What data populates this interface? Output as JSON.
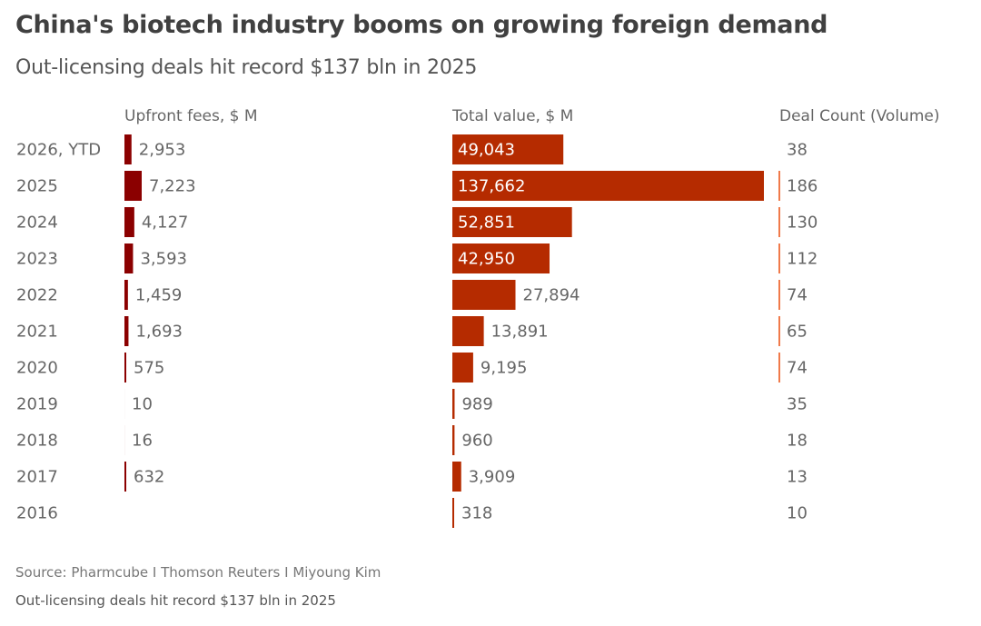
{
  "title": "China's biotech industry booms on growing foreign demand",
  "subtitle": "Out-licensing deals hit record $137 bln in 2025",
  "footer": {
    "source": "Source: Pharmcube I Thomson Reuters I Miyoung Kim",
    "note": "Out-licensing deals hit record $137 bln in 2025"
  },
  "colors": {
    "upfront": "#8b0000",
    "total": "#b52b00",
    "deal_count": "#f07a4a",
    "label_text": "#666666",
    "label_text_on_bar": "#ffffff"
  },
  "chart_data": {
    "type": "bar",
    "orientation": "horizontal",
    "title": "China's biotech industry booms on growing foreign demand",
    "subtitle": "Out-licensing deals hit record $137 bln in 2025",
    "categories": [
      "2026, YTD",
      "2025",
      "2024",
      "2023",
      "2022",
      "2021",
      "2020",
      "2019",
      "2018",
      "2017",
      "2016"
    ],
    "series": [
      {
        "name": "Upfront fees, $ M",
        "values": [
          2953,
          7223,
          4127,
          3593,
          1459,
          1693,
          575,
          10,
          16,
          632,
          null
        ],
        "labels": [
          "2,953",
          "7,223",
          "4,127",
          "3,593",
          "1,459",
          "1,693",
          "575",
          "10",
          "16",
          "632",
          ""
        ]
      },
      {
        "name": "Total value, $ M",
        "values": [
          49043,
          137662,
          52851,
          42950,
          27894,
          13891,
          9195,
          989,
          960,
          3909,
          318
        ],
        "labels": [
          "49,043",
          "137,662",
          "52,851",
          "42,950",
          "27,894",
          "13,891",
          "9,195",
          "989",
          "960",
          "3,909",
          "318"
        ]
      },
      {
        "name": "Deal Count (Volume)",
        "values": [
          38,
          186,
          130,
          112,
          74,
          65,
          74,
          35,
          18,
          13,
          10
        ],
        "labels": [
          "38",
          "186",
          "130",
          "112",
          "74",
          "65",
          "74",
          "35",
          "18",
          "13",
          "10"
        ]
      }
    ],
    "xlabel": "",
    "ylabel": "",
    "grid": false,
    "legend": "none"
  }
}
